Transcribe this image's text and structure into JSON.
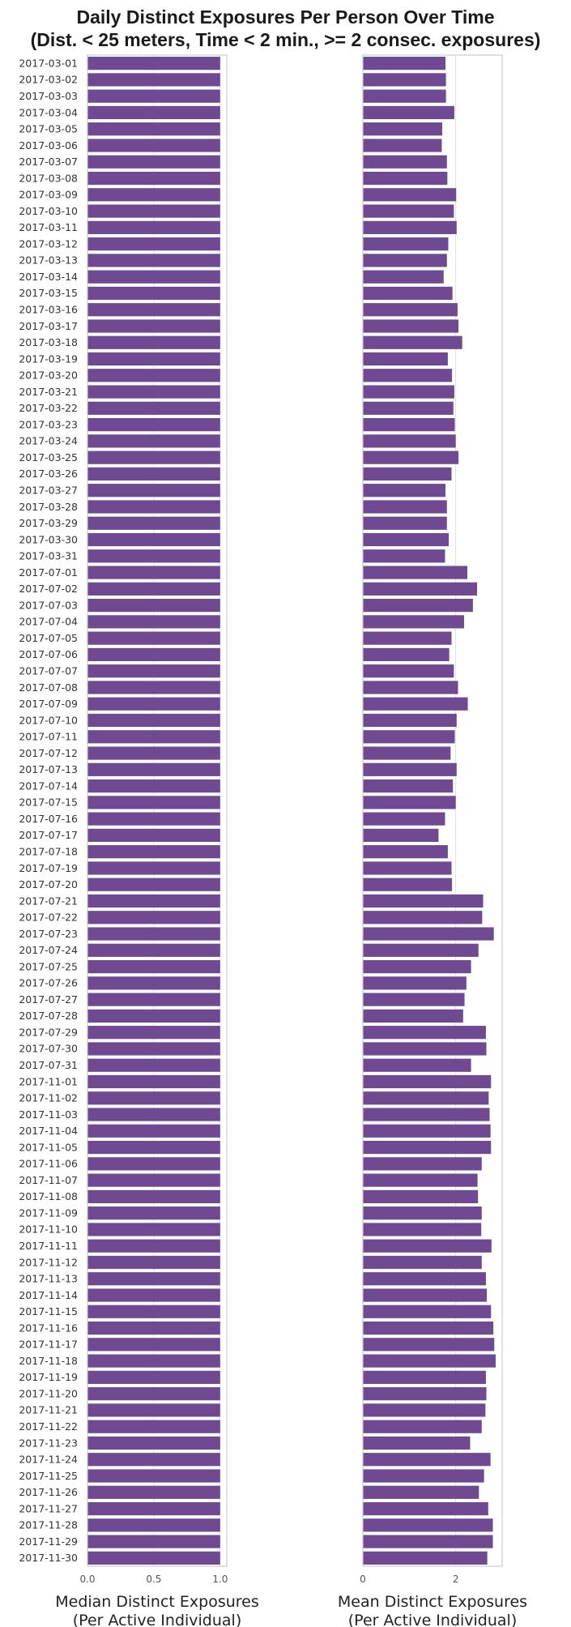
{
  "title_lines": [
    "Daily Distinct Exposures Per Person Over Time",
    "(Dist. < 25 meters, Time < 2 min., >= 2 consec. exposures)"
  ],
  "bar_color": "#6f4a93",
  "chart_data": {
    "type": "bar",
    "orientation": "horizontal",
    "grid": true,
    "categories": [
      "2017-03-01",
      "2017-03-02",
      "2017-03-03",
      "2017-03-04",
      "2017-03-05",
      "2017-03-06",
      "2017-03-07",
      "2017-03-08",
      "2017-03-09",
      "2017-03-10",
      "2017-03-11",
      "2017-03-12",
      "2017-03-13",
      "2017-03-14",
      "2017-03-15",
      "2017-03-16",
      "2017-03-17",
      "2017-03-18",
      "2017-03-19",
      "2017-03-20",
      "2017-03-21",
      "2017-03-22",
      "2017-03-23",
      "2017-03-24",
      "2017-03-25",
      "2017-03-26",
      "2017-03-27",
      "2017-03-28",
      "2017-03-29",
      "2017-03-30",
      "2017-03-31",
      "2017-07-01",
      "2017-07-02",
      "2017-07-03",
      "2017-07-04",
      "2017-07-05",
      "2017-07-06",
      "2017-07-07",
      "2017-07-08",
      "2017-07-09",
      "2017-07-10",
      "2017-07-11",
      "2017-07-12",
      "2017-07-13",
      "2017-07-14",
      "2017-07-15",
      "2017-07-16",
      "2017-07-17",
      "2017-07-18",
      "2017-07-19",
      "2017-07-20",
      "2017-07-21",
      "2017-07-22",
      "2017-07-23",
      "2017-07-24",
      "2017-07-25",
      "2017-07-26",
      "2017-07-27",
      "2017-07-28",
      "2017-07-29",
      "2017-07-30",
      "2017-07-31",
      "2017-11-01",
      "2017-11-02",
      "2017-11-03",
      "2017-11-04",
      "2017-11-05",
      "2017-11-06",
      "2017-11-07",
      "2017-11-08",
      "2017-11-09",
      "2017-11-10",
      "2017-11-11",
      "2017-11-12",
      "2017-11-13",
      "2017-11-14",
      "2017-11-15",
      "2017-11-16",
      "2017-11-17",
      "2017-11-18",
      "2017-11-19",
      "2017-11-20",
      "2017-11-21",
      "2017-11-22",
      "2017-11-23",
      "2017-11-24",
      "2017-11-25",
      "2017-11-26",
      "2017-11-27",
      "2017-11-28",
      "2017-11-29",
      "2017-11-30"
    ],
    "panels": [
      {
        "xlabel": [
          "Median Distinct Exposures",
          "(Per Active Individual)"
        ],
        "xlim": [
          0,
          1.05
        ],
        "xticks": [
          0,
          0.5,
          1
        ],
        "xtick_labels": [
          "0.0",
          "0.5",
          "1.0"
        ],
        "values": [
          1,
          1,
          1,
          1,
          1,
          1,
          1,
          1,
          1,
          1,
          1,
          1,
          1,
          1,
          1,
          1,
          1,
          1,
          1,
          1,
          1,
          1,
          1,
          1,
          1,
          1,
          1,
          1,
          1,
          1,
          1,
          1,
          1,
          1,
          1,
          1,
          1,
          1,
          1,
          1,
          1,
          1,
          1,
          1,
          1,
          1,
          1,
          1,
          1,
          1,
          1,
          1,
          1,
          1,
          1,
          1,
          1,
          1,
          1,
          1,
          1,
          1,
          1,
          1,
          1,
          1,
          1,
          1,
          1,
          1,
          1,
          1,
          1,
          1,
          1,
          1,
          1,
          1,
          1,
          1,
          1,
          1,
          1,
          1,
          1,
          1,
          1,
          1,
          1,
          1,
          1,
          1
        ]
      },
      {
        "xlabel": [
          "Mean Distinct Exposures",
          "(Per Active Individual)"
        ],
        "xlim": [
          0,
          3.0
        ],
        "xticks": [
          0,
          2
        ],
        "xtick_labels": [
          "0",
          "2"
        ],
        "values": [
          1.78,
          1.79,
          1.79,
          1.97,
          1.71,
          1.7,
          1.81,
          1.82,
          2.01,
          1.96,
          2.02,
          1.84,
          1.81,
          1.74,
          1.93,
          2.04,
          2.06,
          2.14,
          1.83,
          1.92,
          1.97,
          1.95,
          1.98,
          2.0,
          2.06,
          1.91,
          1.78,
          1.81,
          1.81,
          1.85,
          1.77,
          2.25,
          2.46,
          2.37,
          2.18,
          1.91,
          1.86,
          1.96,
          2.05,
          2.26,
          2.02,
          1.98,
          1.89,
          2.02,
          1.94,
          2.0,
          1.77,
          1.63,
          1.83,
          1.91,
          1.92,
          2.59,
          2.57,
          2.82,
          2.49,
          2.33,
          2.23,
          2.19,
          2.16,
          2.65,
          2.66,
          2.33,
          2.76,
          2.71,
          2.73,
          2.75,
          2.76,
          2.56,
          2.47,
          2.48,
          2.56,
          2.55,
          2.77,
          2.56,
          2.65,
          2.67,
          2.76,
          2.81,
          2.83,
          2.86,
          2.65,
          2.66,
          2.64,
          2.56,
          2.31,
          2.75,
          2.61,
          2.5,
          2.7,
          2.8,
          2.8,
          2.68
        ]
      }
    ]
  }
}
